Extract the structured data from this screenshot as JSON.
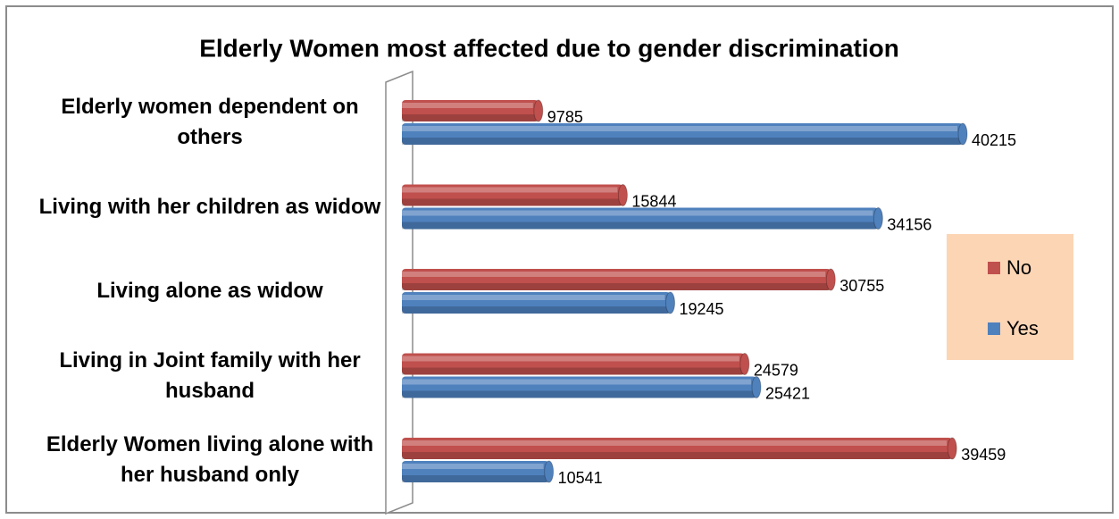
{
  "chart_data": {
    "type": "barh",
    "title": "Elderly Women most affected due to gender discrimination",
    "categories": [
      "Elderly women dependent on others",
      "Living with her children as widow",
      "Living alone as widow",
      "Living in  Joint family with her husband",
      "Elderly Women living alone with her husband only"
    ],
    "series": [
      {
        "name": "No",
        "color": "#c0504d",
        "values": [
          9785,
          15844,
          30755,
          24579,
          39459
        ]
      },
      {
        "name": "Yes",
        "color": "#4f81bd",
        "values": [
          40215,
          34156,
          19245,
          25421,
          10541
        ]
      }
    ],
    "legend": "right"
  }
}
